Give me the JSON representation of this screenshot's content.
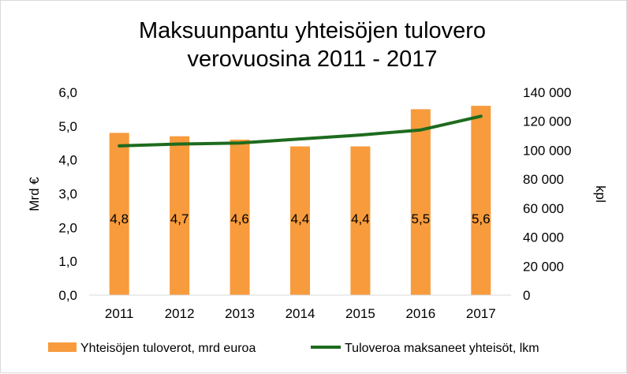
{
  "chart_data": {
    "type": "bar",
    "title_lines": [
      "Maksuunpantu yhteisöjen tulovero",
      "verovuosina 2011 - 2017"
    ],
    "categories": [
      "2011",
      "2012",
      "2013",
      "2014",
      "2015",
      "2016",
      "2017"
    ],
    "series": [
      {
        "name": "Yhteisöjen tuloverot, mrd euroa",
        "type": "bar",
        "axis": "left",
        "color": "#f79b3c",
        "values": [
          4.8,
          4.7,
          4.6,
          4.4,
          4.4,
          5.5,
          5.6
        ],
        "data_labels": [
          "4,8",
          "4,7",
          "4,6",
          "4,4",
          "4,4",
          "5,5",
          "5,6"
        ]
      },
      {
        "name": "Tuloveroa maksaneet yhteisöt, lkm",
        "type": "line",
        "axis": "right",
        "color": "#1e6b1e",
        "values": [
          103000,
          104300,
          105000,
          107800,
          110500,
          114000,
          123500
        ]
      }
    ],
    "y_left": {
      "label": "Mrd €",
      "min": 0,
      "max": 6,
      "ticks": [
        0,
        1,
        2,
        3,
        4,
        5,
        6
      ],
      "tick_labels": [
        "0,0",
        "1,0",
        "2,0",
        "3,0",
        "4,0",
        "5,0",
        "6,0"
      ]
    },
    "y_right": {
      "label": "kpl",
      "min": 0,
      "max": 140000,
      "ticks": [
        0,
        20000,
        40000,
        60000,
        80000,
        100000,
        120000,
        140000
      ],
      "tick_labels": [
        "0",
        "20 000",
        "40 000",
        "60 000",
        "80 000",
        "100 000",
        "120 000",
        "140 000"
      ]
    },
    "grid": false,
    "legend_position": "bottom"
  }
}
